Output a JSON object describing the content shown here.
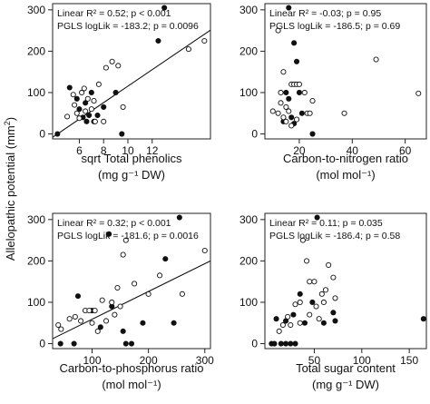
{
  "figure": {
    "ylabel_text": "Allelopathic potential (mm",
    "ylabel_sup": "2",
    "ylabel_tail": ")"
  },
  "chart_data": [
    {
      "id": "p1",
      "type": "scatter",
      "xlabel": "sqrt Total phenolics",
      "xunit": "(mg g⁻¹ DW)",
      "xticks": [
        6,
        8,
        10,
        12
      ],
      "xlim": [
        3.8,
        16.8
      ],
      "yticks": [
        0,
        100,
        200,
        300
      ],
      "ylim": [
        -12,
        315
      ],
      "annotations": [
        "Linear R² = 0.52; p < 0.001",
        "PGLS logLik = -183.2; p = 0.0096"
      ],
      "trendline": {
        "x1": 3.8,
        "y1": -8,
        "x2": 16.8,
        "y2": 251
      },
      "series": [
        {
          "marker": "filled",
          "points": [
            [
              4.2,
              0
            ],
            [
              5.2,
              112
            ],
            [
              5.8,
              85
            ],
            [
              6.0,
              60
            ],
            [
              6.3,
              40
            ],
            [
              6.5,
              75
            ],
            [
              6.6,
              30
            ],
            [
              6.8,
              45
            ],
            [
              7.0,
              100
            ],
            [
              7.2,
              30
            ],
            [
              7.5,
              45
            ],
            [
              8.0,
              65
            ],
            [
              9.0,
              100
            ],
            [
              9.5,
              0
            ],
            [
              12.5,
              225
            ],
            [
              13.0,
              305
            ]
          ]
        },
        {
          "marker": "open",
          "points": [
            [
              5.0,
              42
            ],
            [
              5.5,
              95
            ],
            [
              5.6,
              70
            ],
            [
              5.8,
              50
            ],
            [
              6.0,
              38
            ],
            [
              6.2,
              100
            ],
            [
              6.4,
              110
            ],
            [
              6.5,
              55
            ],
            [
              6.7,
              85
            ],
            [
              7.0,
              60
            ],
            [
              7.2,
              80
            ],
            [
              7.3,
              30
            ],
            [
              7.6,
              120
            ],
            [
              8.0,
              30
            ],
            [
              8.2,
              160
            ],
            [
              8.7,
              175
            ],
            [
              9.2,
              165
            ],
            [
              9.6,
              65
            ],
            [
              15.0,
              205
            ],
            [
              16.3,
              225
            ]
          ]
        }
      ]
    },
    {
      "id": "p2",
      "type": "scatter",
      "xlabel": "Carbon-to-nitrogen ratio",
      "xunit": "(mol mol⁻¹)",
      "xticks": [
        20,
        40,
        60
      ],
      "xlim": [
        7,
        68
      ],
      "yticks": [
        0,
        100,
        200,
        300
      ],
      "ylim": [
        -12,
        315
      ],
      "annotations": [
        "Linear R² = -0.03; p = 0.95",
        "PGLS logLik = -186.5; p = 0.69"
      ],
      "series": [
        {
          "marker": "filled",
          "points": [
            [
              16,
              305
            ],
            [
              18,
              220
            ],
            [
              19,
              175
            ],
            [
              15,
              100
            ],
            [
              16,
              85
            ],
            [
              17,
              40
            ],
            [
              20,
              100
            ],
            [
              21,
              50
            ],
            [
              14,
              30
            ],
            [
              18,
              25
            ],
            [
              25,
              0
            ]
          ]
        },
        {
          "marker": "open",
          "points": [
            [
              12,
              250
            ],
            [
              14,
              150
            ],
            [
              13,
              75
            ],
            [
              15,
              65
            ],
            [
              12,
              50
            ],
            [
              16,
              55
            ],
            [
              17,
              120
            ],
            [
              18,
              120
            ],
            [
              19,
              120
            ],
            [
              20,
              120
            ],
            [
              22,
              100
            ],
            [
              23,
              50
            ],
            [
              24,
              50
            ],
            [
              25,
              80
            ],
            [
              10,
              55
            ],
            [
              13,
              100
            ],
            [
              14,
              40
            ],
            [
              15,
              30
            ],
            [
              17,
              20
            ],
            [
              19,
              35
            ],
            [
              37,
              50
            ],
            [
              49,
              180
            ],
            [
              65,
              98
            ]
          ]
        }
      ]
    },
    {
      "id": "p3",
      "type": "scatter",
      "xlabel": "Carbon-to-phosphorus ratio",
      "xunit": "(mol mol⁻¹)",
      "xticks": [
        100,
        200,
        300
      ],
      "xlim": [
        30,
        310
      ],
      "yticks": [
        0,
        100,
        200,
        300
      ],
      "ylim": [
        -12,
        315
      ],
      "annotations": [
        "Linear R² = 0.32; p < 0.001",
        "PGLS logLik = -181.6; p = 0.0016"
      ],
      "trendline": {
        "x1": 30,
        "y1": 12,
        "x2": 310,
        "y2": 200
      },
      "series": [
        {
          "marker": "filled",
          "points": [
            [
              44,
              0
            ],
            [
              68,
              0
            ],
            [
              75,
              115
            ],
            [
              130,
              265
            ],
            [
              135,
              90
            ],
            [
              160,
              0
            ],
            [
              170,
              0
            ],
            [
              155,
              30
            ],
            [
              190,
              50
            ],
            [
              230,
              205
            ],
            [
              255,
              305
            ],
            [
              245,
              50
            ],
            [
              100,
              80
            ],
            [
              115,
              40
            ]
          ]
        },
        {
          "marker": "open",
          "points": [
            [
              40,
              45
            ],
            [
              45,
              35
            ],
            [
              60,
              60
            ],
            [
              70,
              65
            ],
            [
              80,
              55
            ],
            [
              88,
              80
            ],
            [
              95,
              80
            ],
            [
              100,
              50
            ],
            [
              105,
              80
            ],
            [
              110,
              30
            ],
            [
              118,
              105
            ],
            [
              125,
              55
            ],
            [
              135,
              100
            ],
            [
              140,
              70
            ],
            [
              145,
              135
            ],
            [
              150,
              90
            ],
            [
              155,
              215
            ],
            [
              160,
              250
            ],
            [
              175,
              145
            ],
            [
              200,
              120
            ],
            [
              220,
              165
            ],
            [
              260,
              120
            ],
            [
              300,
              225
            ]
          ]
        }
      ]
    },
    {
      "id": "p4",
      "type": "scatter",
      "xlabel": "Total sugar content",
      "xunit": "(mg g⁻¹ DW)",
      "xticks": [
        50,
        100,
        150
      ],
      "xlim": [
        -2,
        168
      ],
      "yticks": [
        0,
        100,
        200,
        300
      ],
      "ylim": [
        -12,
        315
      ],
      "annotations": [
        "Linear R² = 0.11; p = 0.035",
        "PGLS logLik = -186.4; p = 0.58"
      ],
      "series": [
        {
          "marker": "filled",
          "points": [
            [
              5,
              0
            ],
            [
              8,
              0
            ],
            [
              15,
              0
            ],
            [
              20,
              0
            ],
            [
              25,
              0
            ],
            [
              30,
              0
            ],
            [
              10,
              60
            ],
            [
              20,
              55
            ],
            [
              28,
              70
            ],
            [
              35,
              120
            ],
            [
              40,
              50
            ],
            [
              48,
              100
            ],
            [
              53,
              305
            ],
            [
              60,
              50
            ],
            [
              70,
              75
            ],
            [
              72,
              55
            ],
            [
              165,
              60
            ]
          ]
        },
        {
          "marker": "open",
          "points": [
            [
              13,
              30
            ],
            [
              17,
              45
            ],
            [
              22,
              65
            ],
            [
              25,
              45
            ],
            [
              30,
              95
            ],
            [
              35,
              100
            ],
            [
              38,
              250
            ],
            [
              42,
              200
            ],
            [
              45,
              150
            ],
            [
              50,
              150
            ],
            [
              52,
              90
            ],
            [
              55,
              60
            ],
            [
              58,
              120
            ],
            [
              60,
              100
            ],
            [
              62,
              130
            ],
            [
              65,
              190
            ],
            [
              70,
              160
            ],
            [
              72,
              110
            ],
            [
              35,
              50
            ],
            [
              45,
              70
            ]
          ]
        }
      ]
    }
  ]
}
